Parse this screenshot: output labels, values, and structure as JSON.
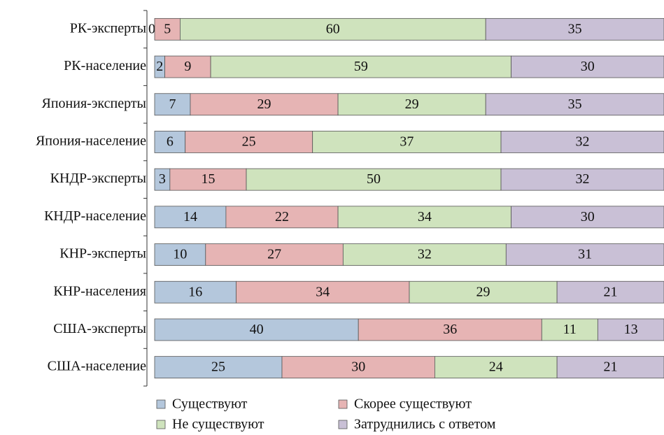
{
  "chart_data": {
    "type": "stacked-bar-horizontal",
    "categories": [
      "РК-эксперты",
      "РК-население",
      "Япония-эксперты",
      "Япония-население",
      "КНДР-эксперты",
      "КНДР-население",
      "КНР-эксперты",
      "КНР-населения",
      "США-эксперты",
      "США-население"
    ],
    "series": [
      {
        "name": "Существуют",
        "color": "#b4c7dc",
        "values": [
          0,
          2,
          7,
          6,
          3,
          14,
          10,
          16,
          40,
          25
        ]
      },
      {
        "name": "Скорее существуют",
        "color": "#e6b4b4",
        "values": [
          5,
          9,
          29,
          25,
          15,
          22,
          27,
          34,
          36,
          30
        ]
      },
      {
        "name": "Не существуют",
        "color": "#cfe3bd",
        "values": [
          60,
          59,
          29,
          37,
          50,
          34,
          32,
          29,
          11,
          24
        ]
      },
      {
        "name": "Затруднились с ответом",
        "color": "#c9c0d6",
        "values": [
          35,
          30,
          35,
          32,
          32,
          30,
          31,
          21,
          13,
          21
        ]
      }
    ]
  }
}
